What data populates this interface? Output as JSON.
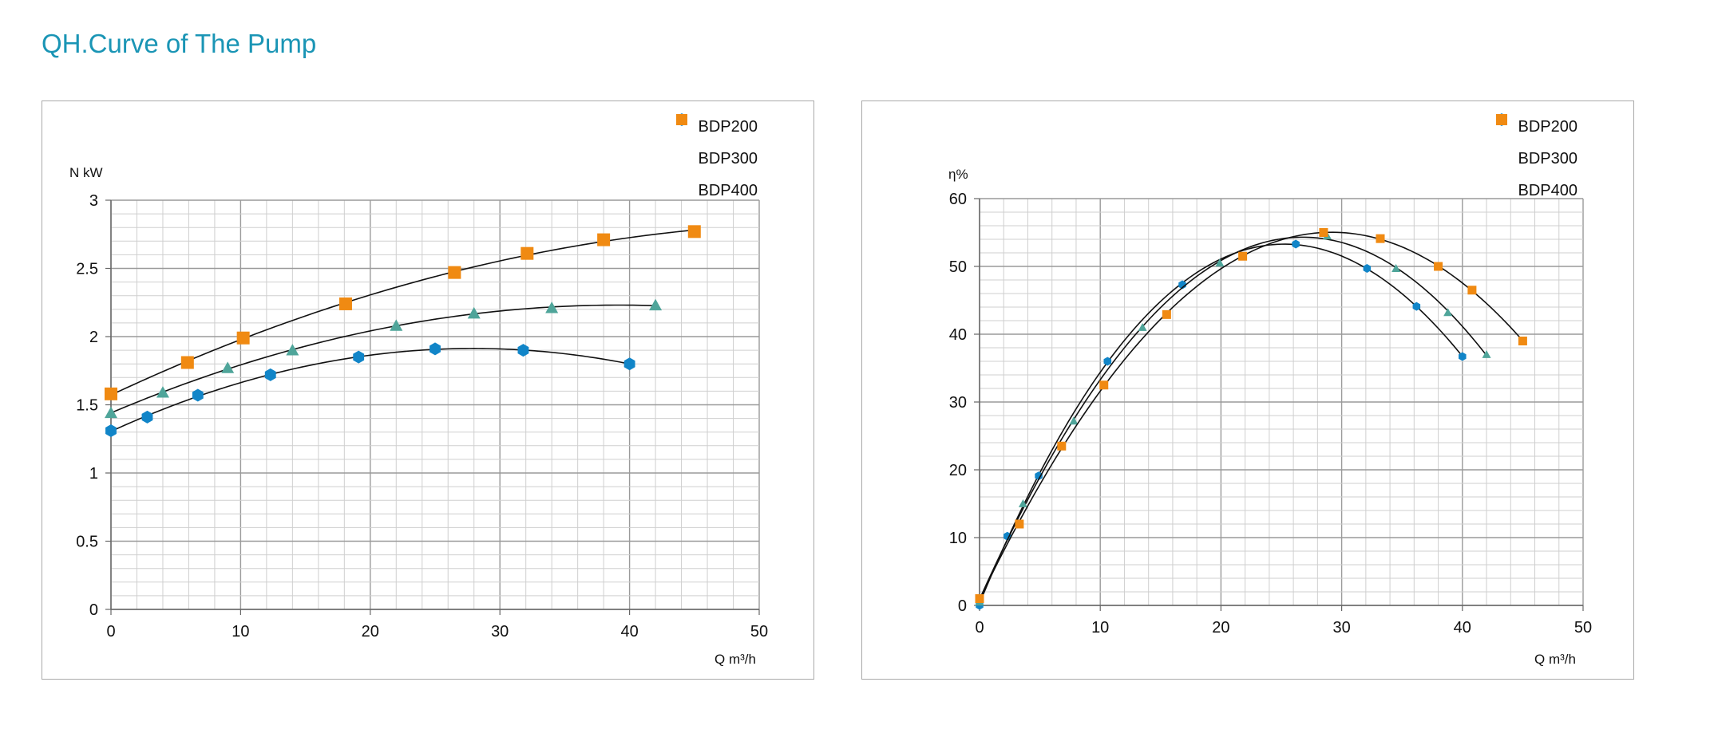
{
  "title": "QH.Curve of The Pump",
  "chart_data": [
    {
      "type": "scatter",
      "ylabel": "N kW",
      "xlabel": "Q m³/h",
      "xlim": [
        0,
        50
      ],
      "ylim": [
        0,
        3
      ],
      "x_ticks": [
        "0",
        "10",
        "20",
        "30",
        "40",
        "50"
      ],
      "y_ticks": [
        "0",
        "0.5",
        "1",
        "1.5",
        "2",
        "2.5",
        "3"
      ],
      "grid": true,
      "legend_position": "top-right",
      "series": [
        {
          "name": "BDP200",
          "color": "#1185c8",
          "marker": "hexagon",
          "x": [
            0,
            2.8,
            6.7,
            12.3,
            19.1,
            25,
            31.8,
            40
          ],
          "y": [
            1.31,
            1.41,
            1.57,
            1.72,
            1.85,
            1.91,
            1.9,
            1.8
          ]
        },
        {
          "name": "BDP300",
          "color": "#4fa59a",
          "marker": "triangle",
          "x": [
            0,
            4,
            9,
            14,
            22,
            28,
            34,
            42
          ],
          "y": [
            1.44,
            1.59,
            1.77,
            1.9,
            2.08,
            2.17,
            2.21,
            2.23
          ]
        },
        {
          "name": "BDP400",
          "color": "#f08a12",
          "marker": "square",
          "x": [
            0,
            5.9,
            10.2,
            18.1,
            26.5,
            32.1,
            38,
            45
          ],
          "y": [
            1.58,
            1.81,
            1.99,
            2.24,
            2.47,
            2.61,
            2.71,
            2.77
          ]
        }
      ]
    },
    {
      "type": "scatter",
      "ylabel": "η%",
      "xlabel": "Q m³/h",
      "xlim": [
        0,
        50
      ],
      "ylim": [
        0,
        60
      ],
      "x_ticks": [
        "0",
        "10",
        "20",
        "30",
        "40",
        "50"
      ],
      "y_ticks": [
        "0",
        "10",
        "20",
        "30",
        "40",
        "50",
        "60"
      ],
      "grid": true,
      "legend_position": "top-right",
      "series": [
        {
          "name": "BDP200",
          "color": "#1185c8",
          "marker": "hexagon",
          "x": [
            0,
            2.3,
            4.9,
            10.6,
            16.8,
            26.2,
            32.1,
            36.2,
            40
          ],
          "y": [
            0,
            10.2,
            19.1,
            36,
            47.3,
            53.3,
            49.7,
            44.1,
            36.7
          ]
        },
        {
          "name": "BDP300",
          "color": "#4fa59a",
          "marker": "triangle",
          "x": [
            0,
            3.6,
            7.8,
            13.5,
            19.9,
            28.8,
            34.5,
            38.8,
            42
          ],
          "y": [
            0.5,
            15,
            27.2,
            41,
            50.5,
            54.5,
            49.7,
            43.2,
            37
          ]
        },
        {
          "name": "BDP400",
          "color": "#f08a12",
          "marker": "square",
          "x": [
            0,
            3.3,
            6.8,
            10.3,
            15.5,
            21.8,
            28.5,
            33.2,
            38,
            40.8,
            45
          ],
          "y": [
            1,
            12,
            23.5,
            32.5,
            42.9,
            51.5,
            55,
            54.1,
            50,
            46.5,
            39
          ]
        }
      ]
    }
  ]
}
